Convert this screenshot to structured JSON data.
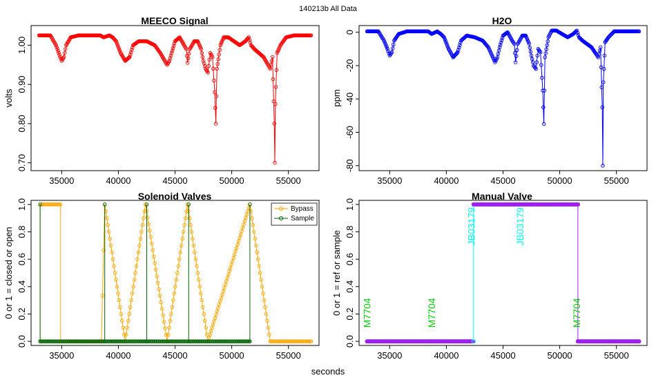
{
  "figure": {
    "suptitle": "140213b   All Data",
    "xlabel": "seconds"
  },
  "chart_data": [
    {
      "id": "meeco",
      "type": "line",
      "title": "MEECO Signal",
      "ylabel": "volts",
      "color": "#ff0000",
      "xlim": [
        32300,
        57700
      ],
      "ylim": [
        0.68,
        1.05
      ],
      "xticks": [
        35000,
        40000,
        45000,
        50000,
        55000
      ],
      "yticks": [
        0.7,
        0.8,
        0.9,
        1.0
      ],
      "ytick_labels": [
        "0.70",
        "0.80",
        "0.90",
        "1.00"
      ],
      "series": [
        {
          "name": "MEECO",
          "x": [
            33000,
            34000,
            34500,
            34800,
            35000,
            35200,
            35400,
            35800,
            36500,
            37500,
            38400,
            38700,
            39200,
            39500,
            39800,
            40200,
            40600,
            41000,
            41300,
            41800,
            42500,
            43200,
            43700,
            44100,
            44300,
            44500,
            44700,
            45000,
            45400,
            45800,
            46000,
            46100,
            46300,
            46700,
            47000,
            47300,
            47500,
            47700,
            47900,
            48100,
            48300,
            48500,
            48600,
            48700,
            49000,
            49300,
            49700,
            50200,
            50700,
            51200,
            51500,
            51700,
            52000,
            52400,
            52800,
            53200,
            53400,
            53600,
            53750,
            53800,
            53850,
            54000,
            54300,
            54800,
            55500,
            56500,
            57000
          ],
          "y": [
            1.025,
            1.025,
            1.0,
            0.975,
            0.96,
            0.97,
            1.0,
            1.02,
            1.025,
            1.025,
            1.025,
            1.02,
            1.025,
            1.02,
            1.01,
            0.98,
            0.96,
            0.97,
            1.0,
            1.01,
            1.01,
            1.0,
            0.98,
            0.96,
            0.95,
            0.96,
            0.98,
            1.01,
            1.02,
            1.0,
            0.99,
            0.955,
            0.99,
            1.01,
            1.01,
            0.99,
            0.96,
            0.94,
            0.93,
            0.98,
            0.97,
            0.88,
            0.8,
            0.94,
            1.0,
            1.02,
            1.02,
            1.01,
            1.0,
            1.01,
            1.02,
            1.0,
            0.99,
            0.98,
            0.97,
            0.95,
            0.94,
            0.97,
            0.8,
            0.7,
            0.85,
            0.98,
            1.0,
            1.02,
            1.025,
            1.025,
            1.025
          ]
        }
      ]
    },
    {
      "id": "h2o",
      "type": "line",
      "title": "H2O",
      "ylabel": "ppm",
      "color": "#0000ff",
      "xlim": [
        32300,
        57700
      ],
      "ylim": [
        -83,
        4
      ],
      "xticks": [
        35000,
        40000,
        45000,
        50000,
        55000
      ],
      "yticks": [
        -80,
        -60,
        -40,
        -20,
        0
      ],
      "ytick_labels": [
        "-80",
        "-60",
        "-40",
        "-20",
        "0"
      ],
      "series": [
        {
          "name": "H2O",
          "x": [
            33000,
            34000,
            34500,
            34800,
            35000,
            35200,
            35400,
            35800,
            36500,
            37500,
            38400,
            38700,
            39200,
            39500,
            39800,
            40200,
            40600,
            41000,
            41300,
            41800,
            42500,
            43200,
            43700,
            44100,
            44300,
            44500,
            44700,
            45000,
            45400,
            45800,
            46000,
            46100,
            46300,
            46700,
            47000,
            47300,
            47500,
            47700,
            47900,
            48100,
            48300,
            48500,
            48600,
            48700,
            49000,
            49300,
            49700,
            50200,
            50700,
            51200,
            51500,
            51700,
            52000,
            52400,
            52800,
            53200,
            53400,
            53600,
            53750,
            53800,
            53850,
            54000,
            54300,
            54800,
            55500,
            56500,
            57000
          ],
          "y": [
            0.5,
            0.5,
            -5,
            -10,
            -14,
            -12,
            -5,
            -1,
            0.5,
            0.5,
            0.5,
            -1,
            0.5,
            -1,
            -3,
            -10,
            -15,
            -12,
            -5,
            -2,
            -3,
            -5,
            -9,
            -15,
            -18,
            -15,
            -9,
            -2,
            0,
            -5,
            -7,
            -18,
            -7,
            -2,
            -2,
            -7,
            -14,
            -20,
            -22,
            -10,
            -12,
            -35,
            -55,
            -15,
            -3,
            1,
            1,
            -1,
            -3,
            -1,
            1,
            -3,
            -5,
            -7,
            -9,
            -13,
            -15,
            -9,
            -45,
            -80,
            -30,
            -6,
            -3,
            0.5,
            0.5,
            0.5,
            0.5
          ]
        }
      ]
    },
    {
      "id": "solenoid",
      "type": "line",
      "title": "Solenoid Valves",
      "ylabel": "0 or 1 = closed or open",
      "xlim": [
        32300,
        57700
      ],
      "ylim": [
        -0.03,
        1.03
      ],
      "xticks": [
        35000,
        40000,
        45000,
        50000,
        55000
      ],
      "yticks": [
        0.0,
        0.2,
        0.4,
        0.6,
        0.8,
        1.0
      ],
      "ytick_labels": [
        "0.0",
        "0.2",
        "0.4",
        "0.6",
        "0.8",
        "1.0"
      ],
      "legend": {
        "entries": [
          "Bypass",
          "Sample"
        ],
        "position": "top-right"
      },
      "series": [
        {
          "name": "Bypass",
          "color": "#ffa500",
          "x": [
            33100,
            33100,
            34900,
            34900,
            38500,
            38800,
            38800,
            40600,
            40600,
            42400,
            42400,
            44300,
            44300,
            46100,
            46100,
            47900,
            47900,
            51600,
            51600,
            53400,
            53400,
            57000
          ],
          "y": [
            0,
            1,
            1,
            0,
            0,
            1,
            1,
            0,
            0,
            1,
            1,
            0,
            0,
            1,
            1,
            0,
            0,
            1,
            1,
            0,
            0,
            0
          ]
        },
        {
          "name": "Sample",
          "color": "#006400",
          "x": [
            33100,
            33100,
            33100,
            38800,
            38800,
            38800,
            42500,
            42500,
            42500,
            46200,
            46200,
            46200,
            51600,
            51600,
            51600
          ],
          "y": [
            0,
            1,
            0,
            0,
            1,
            0,
            0,
            1,
            0,
            0,
            1,
            0,
            0,
            1,
            0
          ]
        }
      ]
    },
    {
      "id": "manual",
      "type": "line",
      "title": "Manual Valve",
      "ylabel": "0 or 1 = ref or sample",
      "xlim": [
        32300,
        57700
      ],
      "ylim": [
        -0.03,
        1.03
      ],
      "xticks": [
        35000,
        40000,
        45000,
        50000,
        55000
      ],
      "yticks": [
        0.0,
        0.2,
        0.4,
        0.6,
        0.8,
        1.0
      ],
      "ytick_labels": [
        "0.0",
        "0.2",
        "0.4",
        "0.6",
        "0.8",
        "1.0"
      ],
      "segments": [
        {
          "x": [
            33000,
            38600
          ],
          "y": [
            0,
            0
          ],
          "color": "#a020f0"
        },
        {
          "x": [
            38600,
            42400
          ],
          "y": [
            0,
            0
          ],
          "color": "#a020f0"
        },
        {
          "x": [
            42400,
            42400
          ],
          "y": [
            0,
            1
          ],
          "color": "#00ffff"
        },
        {
          "x": [
            42400,
            51600
          ],
          "y": [
            1,
            1
          ],
          "color": "#a020f0"
        },
        {
          "x": [
            51600,
            51600
          ],
          "y": [
            1,
            0
          ],
          "color": "#a020f0"
        },
        {
          "x": [
            51600,
            57000
          ],
          "y": [
            0,
            0
          ],
          "color": "#a020f0"
        }
      ],
      "annotations": [
        {
          "text": "M7704",
          "x": 33300,
          "y": 0.1,
          "color": "#00cc00"
        },
        {
          "text": "M7704",
          "x": 39000,
          "y": 0.1,
          "color": "#00cc00"
        },
        {
          "text": "JB03179",
          "x": 42500,
          "y": 0.7,
          "color": "#00ffff"
        },
        {
          "text": "JB03179",
          "x": 46800,
          "y": 0.7,
          "color": "#00ffff"
        },
        {
          "text": "M7704",
          "x": 51800,
          "y": 0.1,
          "color": "#00cc00"
        }
      ]
    }
  ]
}
